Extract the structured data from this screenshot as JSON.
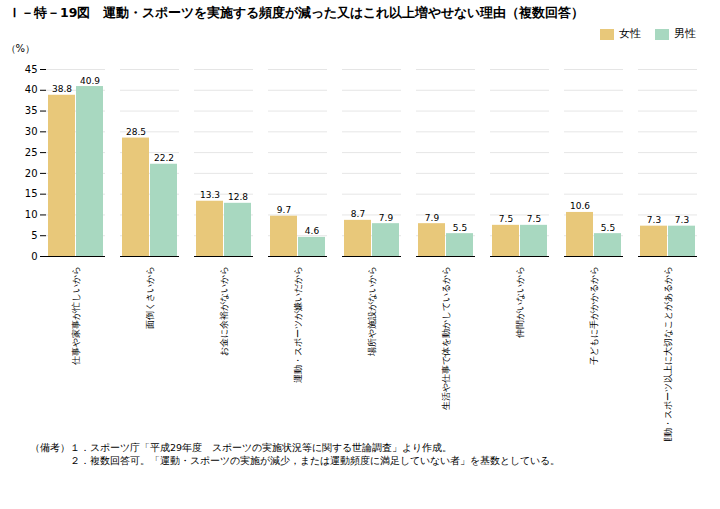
{
  "chart_data": {
    "type": "bar",
    "title": "Ｉ－特－19図　運動・スポーツを実施する頻度が減った又はこれ以上増やせない理由（複数回答）",
    "ylabel": "（%）",
    "categories": [
      "仕事や家事が忙しいから",
      "面倒くさいから",
      "お金に余裕がないから",
      "運動・スポーツが嫌いだから",
      "場所や施設がないから",
      "生活や仕事で体を動かしているから",
      "仲間がいないから",
      "子どもに手がかかるから",
      "運動・スポーツ以上に大切なことがあるから"
    ],
    "series": [
      {
        "name": "女性",
        "color": "#E8C87A",
        "values": [
          38.8,
          28.5,
          13.3,
          9.7,
          8.7,
          7.9,
          7.5,
          10.6,
          7.3
        ]
      },
      {
        "name": "男性",
        "color": "#A8D8C0",
        "values": [
          40.9,
          22.2,
          12.8,
          4.6,
          7.9,
          5.5,
          7.5,
          5.5,
          7.3
        ]
      }
    ],
    "ylim": [
      0,
      45
    ],
    "yticks": [
      0,
      5,
      10,
      15,
      20,
      25,
      30,
      35,
      40,
      45
    ],
    "grid": true,
    "legend": "upper right",
    "data_labels": true,
    "annotations": [
      "（備考）１．スポーツ庁「平成29年度　スポーツの実施状況等に関する世論調査」より作成。",
      "　　　　２．複数回答可。「運動・スポーツの実施が減少，または運動頻度に満足していない者」を基数としている。"
    ]
  }
}
